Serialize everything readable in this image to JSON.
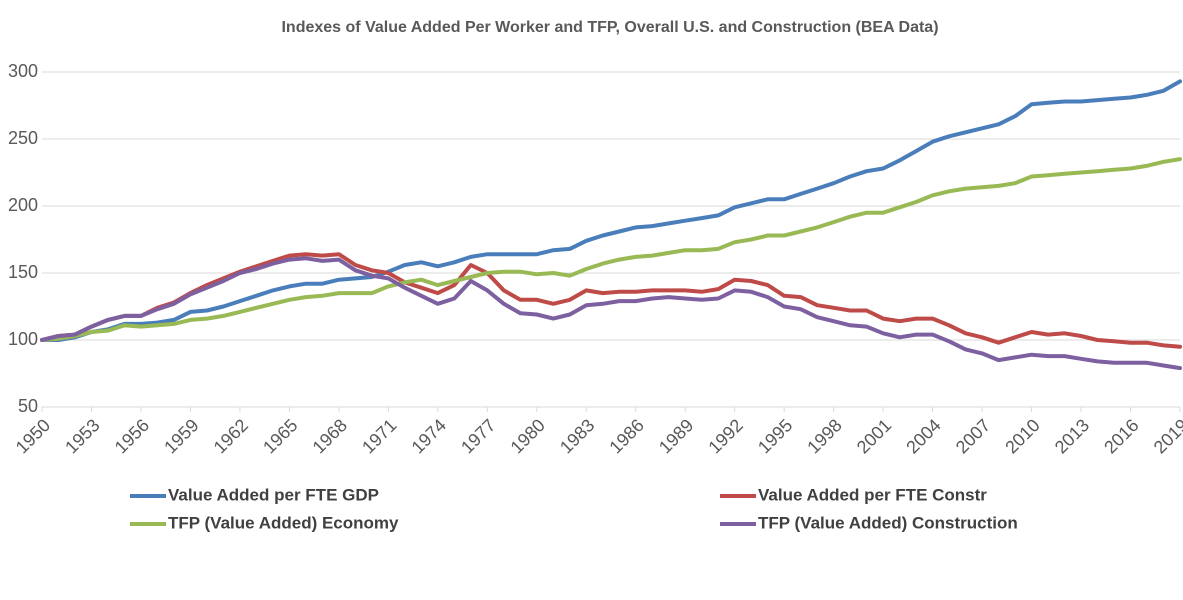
{
  "chart_data": {
    "type": "line",
    "title": "Indexes of Value Added Per Worker and TFP, Overall U.S. and Construction (BEA Data)",
    "x": [
      1950,
      1951,
      1952,
      1953,
      1954,
      1955,
      1956,
      1957,
      1958,
      1959,
      1960,
      1961,
      1962,
      1963,
      1964,
      1965,
      1966,
      1967,
      1968,
      1969,
      1970,
      1971,
      1972,
      1973,
      1974,
      1975,
      1976,
      1977,
      1978,
      1979,
      1980,
      1981,
      1982,
      1983,
      1984,
      1985,
      1986,
      1987,
      1988,
      1989,
      1990,
      1991,
      1992,
      1993,
      1994,
      1995,
      1996,
      1997,
      1998,
      1999,
      2000,
      2001,
      2002,
      2003,
      2004,
      2005,
      2006,
      2007,
      2008,
      2009,
      2010,
      2011,
      2012,
      2013,
      2014,
      2015,
      2016,
      2017,
      2018,
      2019
    ],
    "series": [
      {
        "name": "Value Added per FTE GDP",
        "color": "#4a7ebb",
        "values": [
          100,
          100,
          102,
          106,
          108,
          112,
          112,
          113,
          115,
          121,
          122,
          125,
          129,
          133,
          137,
          140,
          142,
          142,
          145,
          146,
          147,
          151,
          156,
          158,
          155,
          158,
          162,
          164,
          164,
          164,
          164,
          167,
          168,
          174,
          178,
          181,
          184,
          185,
          187,
          189,
          191,
          193,
          199,
          202,
          205,
          205,
          209,
          213,
          217,
          222,
          226,
          228,
          234,
          241,
          248,
          252,
          255,
          258,
          261,
          267,
          276,
          277,
          278,
          278,
          279,
          280,
          281,
          283,
          286,
          293
        ]
      },
      {
        "name": "Value Added per FTE Constr",
        "color": "#be4b48",
        "values": [
          100,
          103,
          104,
          110,
          115,
          118,
          118,
          124,
          128,
          135,
          141,
          146,
          151,
          155,
          159,
          163,
          164,
          163,
          164,
          156,
          152,
          150,
          143,
          139,
          135,
          141,
          156,
          150,
          137,
          130,
          130,
          127,
          130,
          137,
          135,
          136,
          136,
          137,
          137,
          137,
          136,
          138,
          145,
          144,
          141,
          133,
          132,
          126,
          124,
          122,
          122,
          116,
          114,
          116,
          116,
          111,
          105,
          102,
          98,
          102,
          106,
          104,
          105,
          103,
          100,
          99,
          98,
          98,
          96,
          95
        ]
      },
      {
        "name": "TFP (Value Added) Economy",
        "color": "#98b954",
        "values": [
          100,
          101,
          103,
          106,
          107,
          111,
          110,
          111,
          112,
          115,
          116,
          118,
          121,
          124,
          127,
          130,
          132,
          133,
          135,
          135,
          135,
          140,
          143,
          145,
          141,
          144,
          147,
          150,
          151,
          151,
          149,
          150,
          148,
          153,
          157,
          160,
          162,
          163,
          165,
          167,
          167,
          168,
          173,
          175,
          178,
          178,
          181,
          184,
          188,
          192,
          195,
          195,
          199,
          203,
          208,
          211,
          213,
          214,
          215,
          217,
          222,
          223,
          224,
          225,
          226,
          227,
          228,
          230,
          233,
          235
        ]
      },
      {
        "name": "TFP (Value Added) Construction",
        "color": "#7d60a0",
        "values": [
          100,
          103,
          104,
          110,
          115,
          118,
          118,
          123,
          127,
          134,
          139,
          144,
          150,
          153,
          157,
          160,
          161,
          159,
          160,
          152,
          148,
          146,
          139,
          133,
          127,
          131,
          144,
          137,
          127,
          120,
          119,
          116,
          119,
          126,
          127,
          129,
          129,
          131,
          132,
          131,
          130,
          131,
          137,
          136,
          132,
          125,
          123,
          117,
          114,
          111,
          110,
          105,
          102,
          104,
          104,
          99,
          93,
          90,
          85,
          87,
          89,
          88,
          88,
          86,
          84,
          83,
          83,
          83,
          81,
          79
        ]
      }
    ],
    "xlim": [
      1950,
      2019
    ],
    "xticks": [
      1950,
      1953,
      1956,
      1959,
      1962,
      1965,
      1968,
      1971,
      1974,
      1977,
      1980,
      1983,
      1986,
      1989,
      1992,
      1995,
      1998,
      2001,
      2004,
      2007,
      2010,
      2013,
      2016,
      2019
    ],
    "ylim": [
      50,
      300
    ],
    "yticks": [
      50,
      100,
      150,
      200,
      250,
      300
    ],
    "grid": true,
    "legend": "bottom"
  }
}
